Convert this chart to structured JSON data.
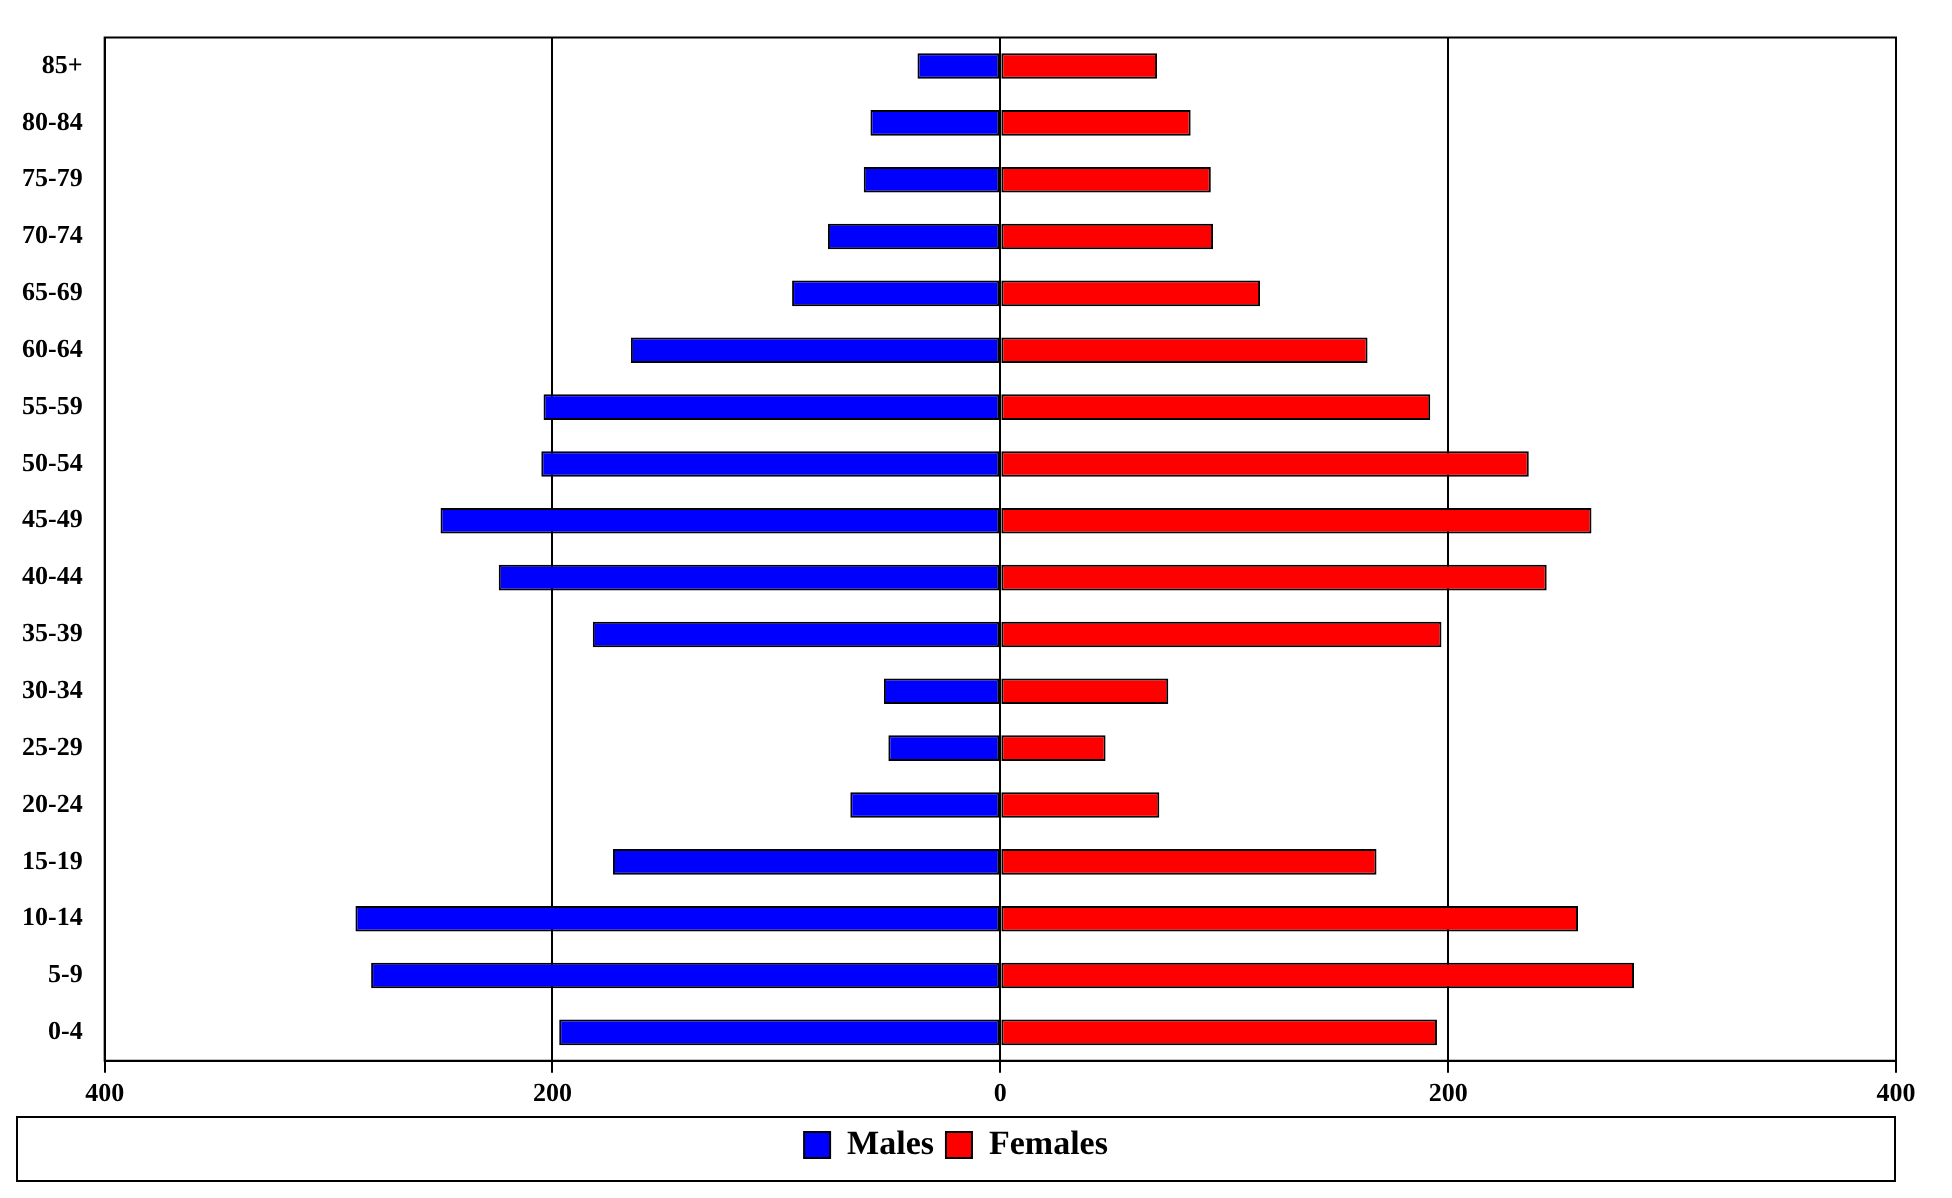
{
  "chart_data": {
    "type": "bar",
    "orientation": "horizontal",
    "stacked": true,
    "categories": [
      "85+",
      "80-84",
      "75-79",
      "70-74",
      "65-69",
      "60-64",
      "55-59",
      "50-54",
      "45-49",
      "40-44",
      "35-39",
      "30-34",
      "25-29",
      "20-24",
      "15-19",
      "10-14",
      "5-9",
      "0-4"
    ],
    "series": [
      {
        "name": "Males",
        "color": "#0000ff",
        "values": [
          -37,
          -58,
          -61,
          -77,
          -93,
          -165,
          -204,
          -205,
          -250,
          -224,
          -182,
          -52,
          -50,
          -67,
          -173,
          -288,
          -281,
          -197
        ]
      },
      {
        "name": "Females",
        "color": "#ff0000",
        "values": [
          70,
          85,
          94,
          95,
          116,
          164,
          192,
          236,
          264,
          244,
          197,
          75,
          47,
          71,
          168,
          258,
          283,
          195
        ]
      }
    ],
    "xlim": [
      -400,
      400
    ],
    "xticks": [
      {
        "value": -400,
        "label": "400"
      },
      {
        "value": -200,
        "label": "200"
      },
      0,
      200,
      400
    ],
    "grid": "x",
    "legend": "bottom"
  }
}
